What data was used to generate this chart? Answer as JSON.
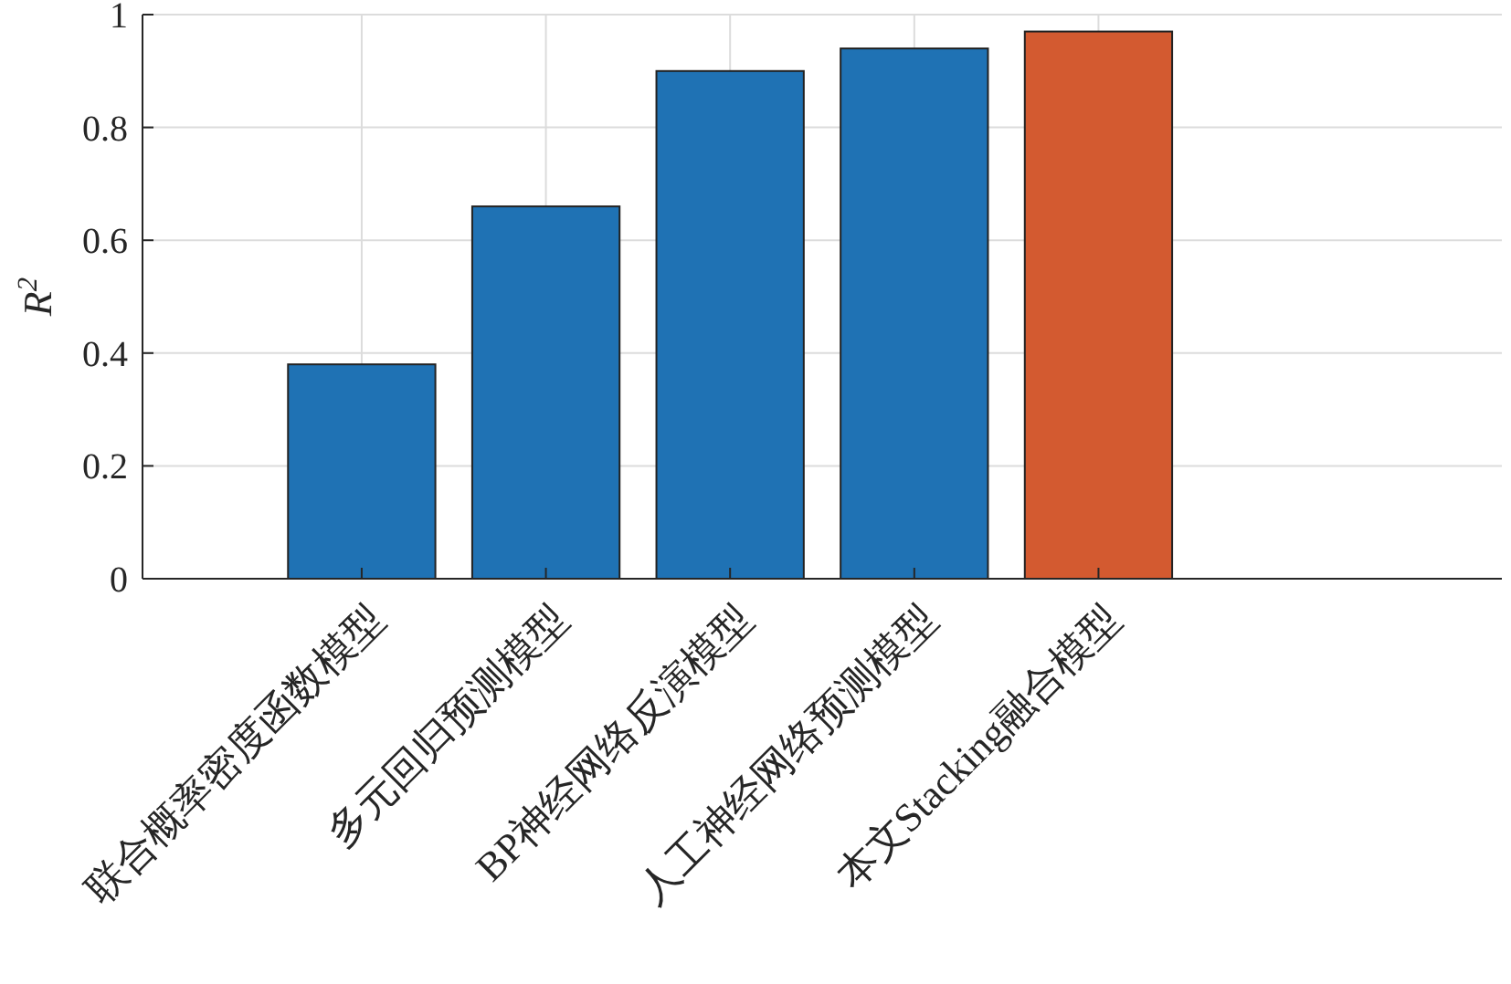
{
  "chart_data": {
    "type": "bar",
    "ylabel": "R$^{2}$",
    "categories": [
      "联合概率密度函数模型",
      "多元回归预测模型",
      "BP神经网络反演模型",
      "人工神经网络预测模型",
      "本文Stacking融合模型"
    ],
    "values": [
      0.38,
      0.66,
      0.9,
      0.94,
      0.97
    ],
    "colors": [
      "#1f72b4",
      "#1f72b4",
      "#1f72b4",
      "#1f72b4",
      "#d35a30"
    ],
    "ylim": [
      0,
      1
    ],
    "yticks": [
      0,
      {
        "value": 0.2,
        "label": "0.2"
      },
      {
        "value": 0.4,
        "label": "0.4"
      },
      {
        "value": 0.6,
        "label": "0.6"
      },
      {
        "value": 0.8,
        "label": "0.8"
      },
      1
    ],
    "grid": true
  }
}
